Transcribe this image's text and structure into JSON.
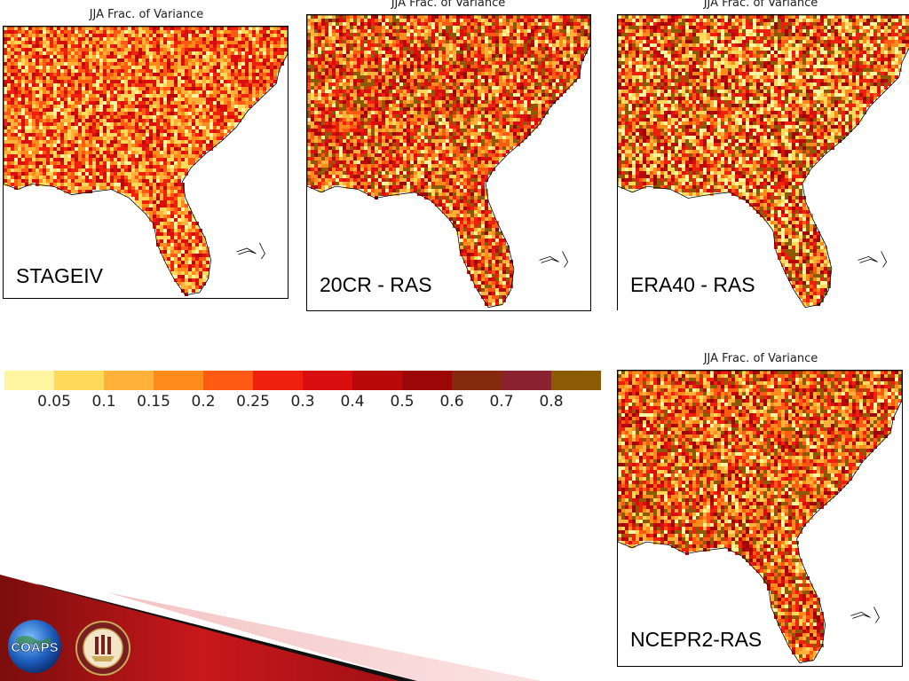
{
  "panels": [
    {
      "id": "stageiv",
      "title": "JJA Frac. of Variance",
      "label": "STAGEIV"
    },
    {
      "id": "20cr",
      "title": "JJA Frac. of Variance",
      "label": "20CR - RAS"
    },
    {
      "id": "era40",
      "title": "JJA Frac. of Variance",
      "label": "ERA40 - RAS"
    },
    {
      "id": "ncepr2",
      "title": "JJA Frac. of Variance",
      "label": "NCEPR2-RAS"
    }
  ],
  "colorbar": {
    "ticks": [
      "0.05",
      "0.1",
      "0.15",
      "0.2",
      "0.25",
      "0.3",
      "0.4",
      "0.5",
      "0.6",
      "0.7",
      "0.8"
    ],
    "colors": [
      "#fff5a0",
      "#ffd95a",
      "#ffb13a",
      "#ff8c1a",
      "#ff5a14",
      "#f0200f",
      "#d90f0f",
      "#b80a0a",
      "#9c0606",
      "#852a0e",
      "#8a2230",
      "#8a5a05"
    ]
  },
  "logos": {
    "coaps_text": "COAPS",
    "fsu_seal": "Florida State University seal"
  }
}
